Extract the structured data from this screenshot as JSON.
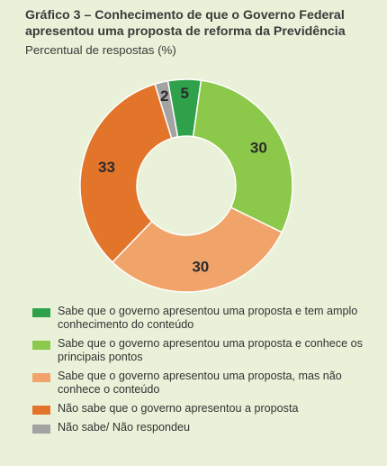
{
  "title": "Gráfico 3 – Conhecimento de que o Governo Federal apresentou uma proposta de reforma da Previdência",
  "subtitle": "Percentual de respostas (%)",
  "chart_data": {
    "type": "pie",
    "donut": true,
    "slices": [
      {
        "label": "Sabe que o governo apresentou uma proposta e tem amplo conhecimento do conteúdo",
        "value": 5,
        "color": "#2ea14a"
      },
      {
        "label": "Sabe que o governo apresentou uma proposta e conhece os principais pontos",
        "value": 30,
        "color": "#8cc94a"
      },
      {
        "label": "Sabe que o governo apresentou uma proposta, mas não conhece o conteúdo",
        "value": 30,
        "color": "#f0a46a"
      },
      {
        "label": "Não sabe que o governo apresentou a proposta",
        "value": 33,
        "color": "#e2752a"
      },
      {
        "label": "Não sabe/ Não respondeu",
        "value": 2,
        "color": "#a3a3a3"
      }
    ],
    "legend_position": "bottom"
  }
}
